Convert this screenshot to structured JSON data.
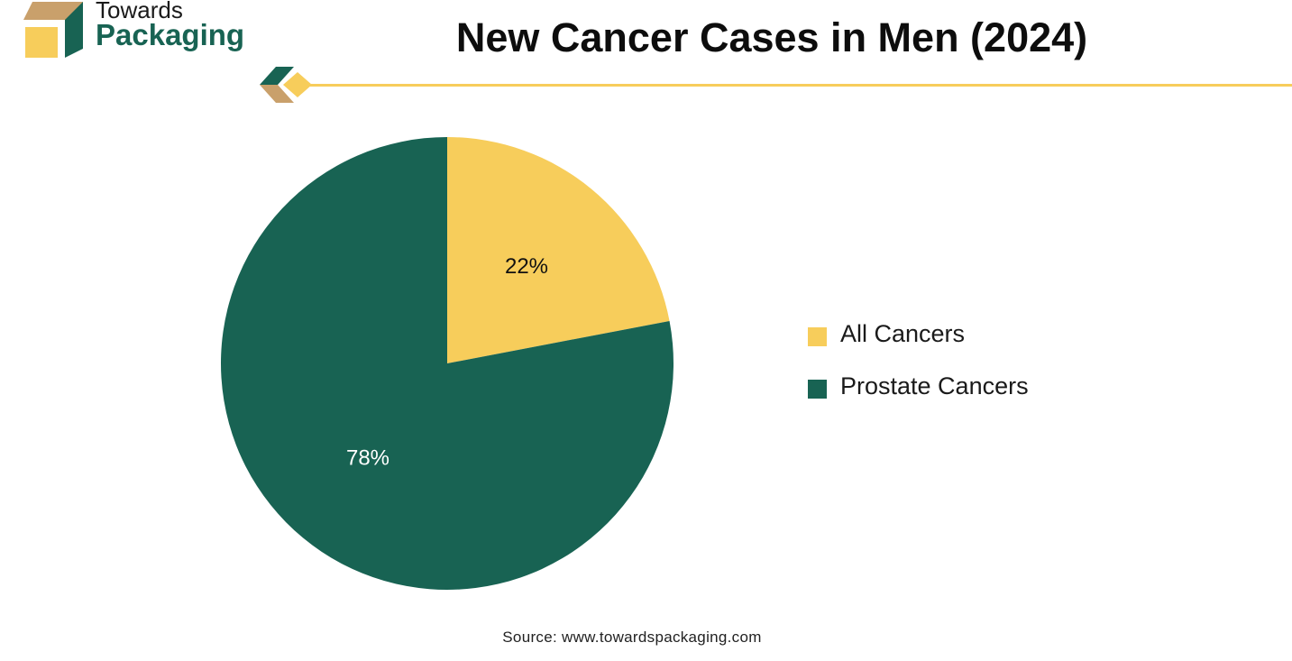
{
  "brand": {
    "line1": "Towards",
    "line2": "Packaging"
  },
  "colors": {
    "brand_green": "#186353",
    "brand_yellow": "#F7CD5B",
    "brand_tan": "#C9A06B"
  },
  "chart_data": {
    "type": "pie",
    "title": "New Cancer Cases in Men (2024)",
    "categories": [
      "All Cancers",
      "Prostate Cancers"
    ],
    "values": [
      22,
      78
    ],
    "value_labels": [
      "22%",
      "78%"
    ],
    "colors": [
      "#F7CD5B",
      "#186353"
    ],
    "label_colors": [
      "#111111",
      "#ffffff"
    ],
    "start_angle_deg": 0,
    "direction": "clockwise",
    "legend_placement": "right"
  },
  "footer": {
    "source": "Source: www.towardspackaging.com"
  }
}
